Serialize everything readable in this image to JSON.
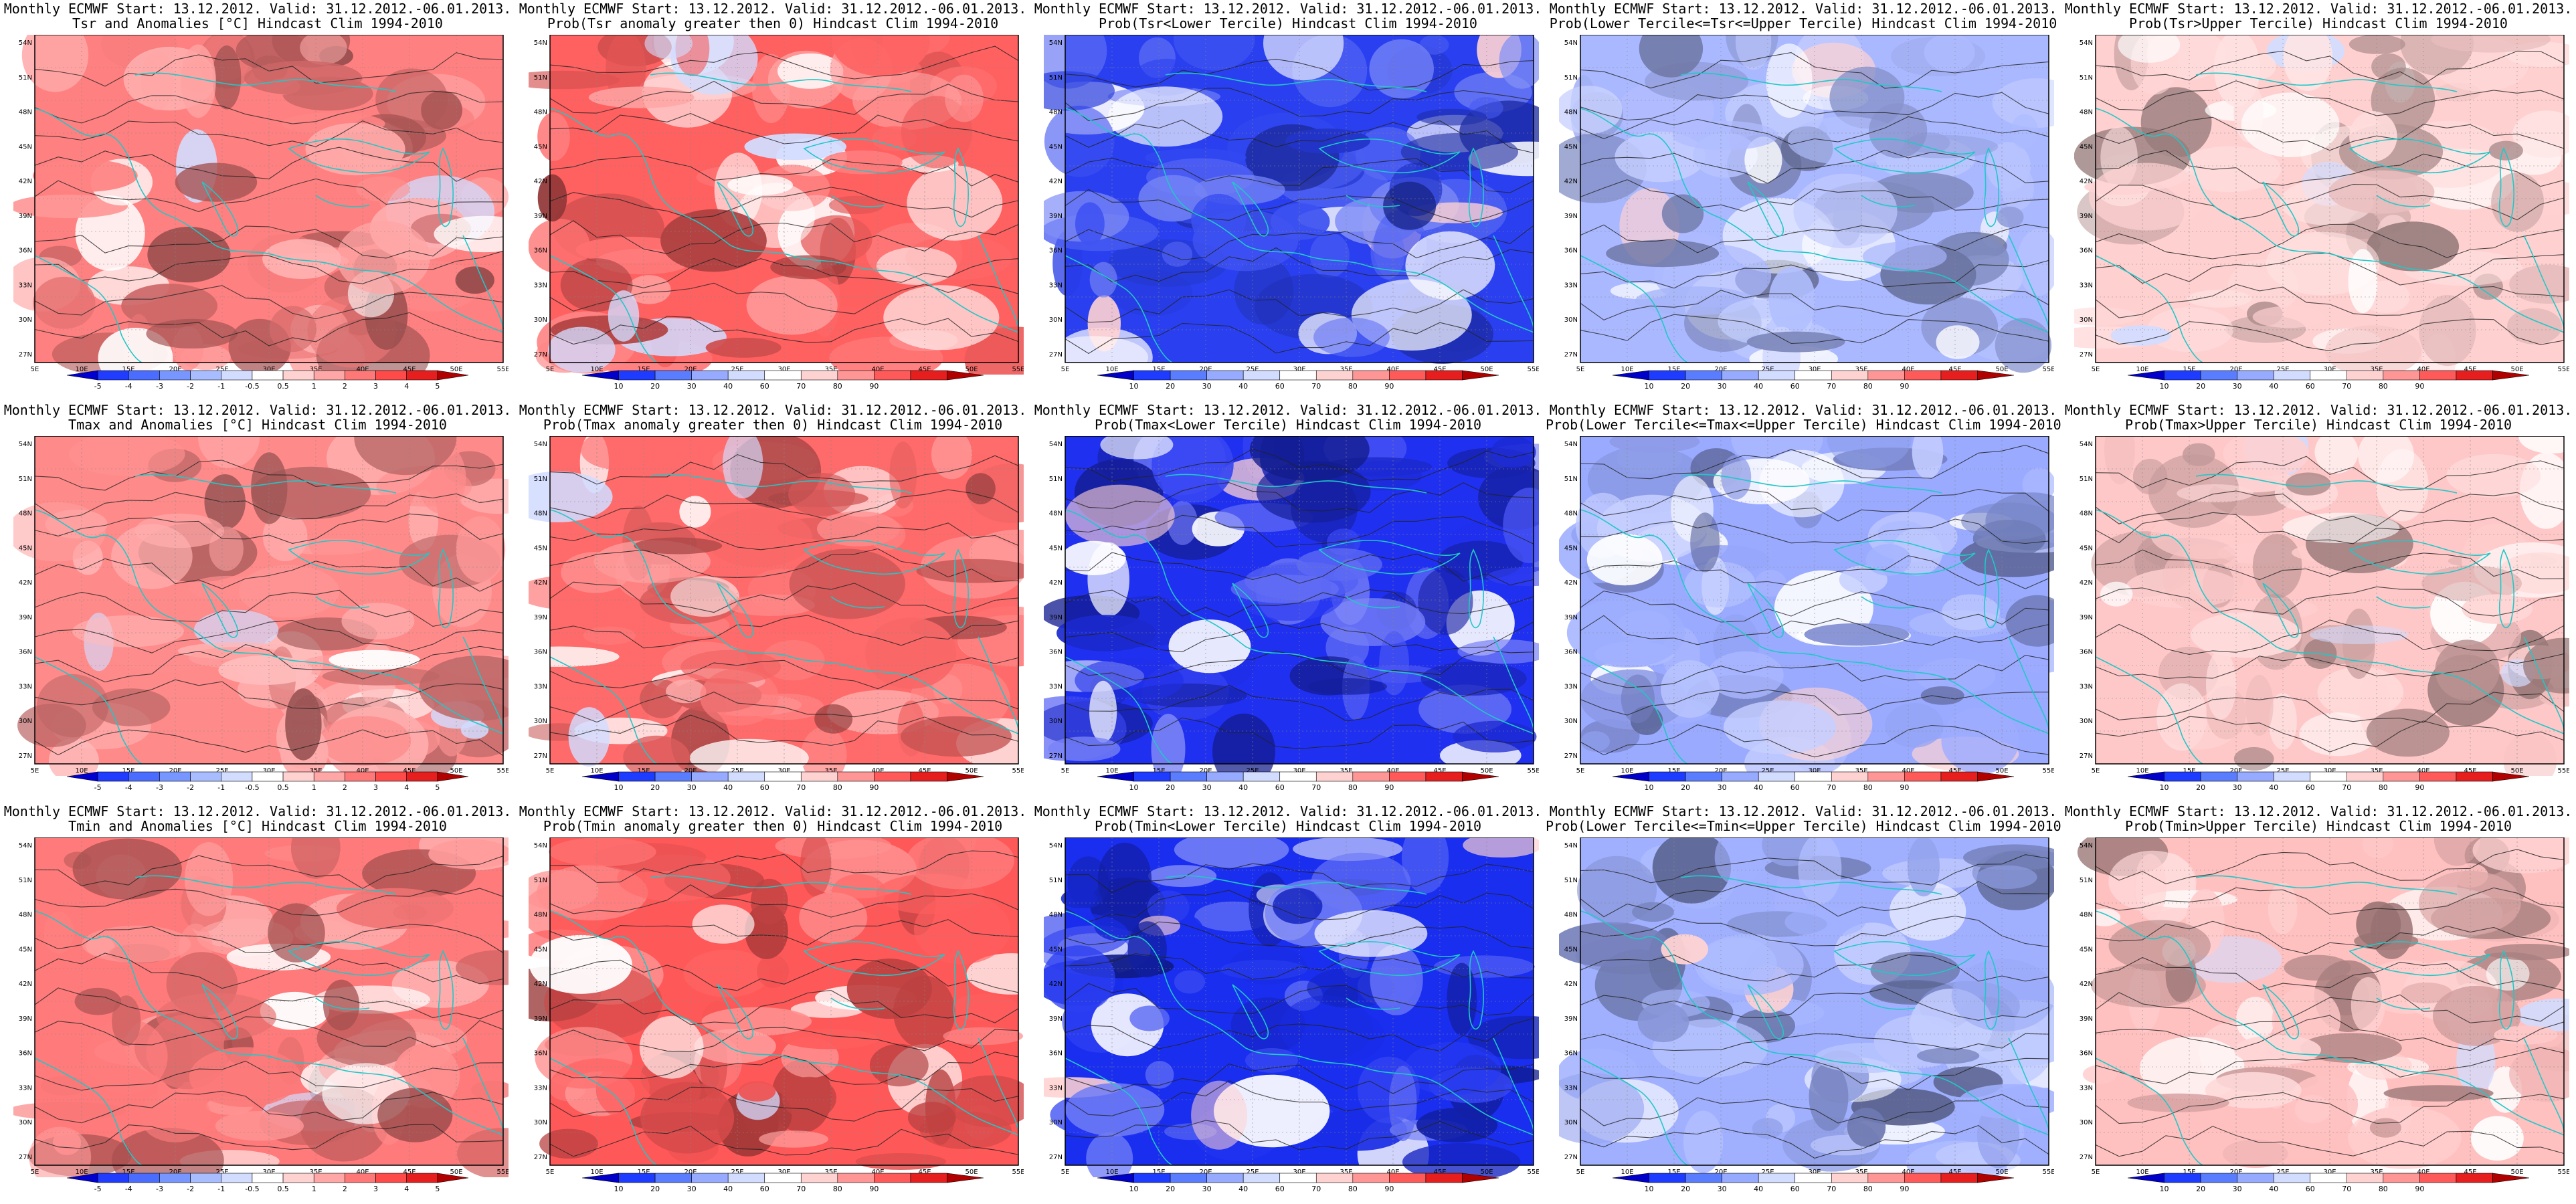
{
  "common": {
    "lat_labels": [
      "54N",
      "51N",
      "48N",
      "45N",
      "42N",
      "39N",
      "36N",
      "33N",
      "30N",
      "27N"
    ],
    "lon_labels": [
      "5E",
      "10E",
      "15E",
      "20E",
      "25E",
      "30E",
      "35E",
      "40E",
      "45E",
      "50E",
      "55E"
    ]
  },
  "colorbars": {
    "anomaly": {
      "labels": [
        "-5",
        "-4",
        "-3",
        "-2",
        "-1",
        "-0.5",
        "0.5",
        "1",
        "2",
        "3",
        "4",
        "5"
      ],
      "colors": [
        "#0000d0",
        "#1f3cff",
        "#4a6cff",
        "#7896ff",
        "#a7bdff",
        "#d2dcff",
        "#ffffff",
        "#ffd2d2",
        "#ffa7a7",
        "#ff7878",
        "#ff4a4a",
        "#e61e1e",
        "#b00000"
      ]
    },
    "prob": {
      "labels": [
        "10",
        "20",
        "30",
        "40",
        "60",
        "70",
        "80",
        "90"
      ],
      "colors": [
        "#0000c8",
        "#1e3cff",
        "#5a7dff",
        "#96aaff",
        "#d2dcff",
        "#ffffff",
        "#ffd2d2",
        "#ff9696",
        "#ff5a5a",
        "#e61e1e",
        "#b00000"
      ]
    }
  },
  "panels": [
    {
      "title1": "Monthly ECMWF Start: 13.12.2012. Valid: 31.12.2012.-06.01.2013.",
      "title2": "Tsr and Anomalies [°C] Hindcast Clim 1994-2010",
      "cbar": "anomaly",
      "base": "#ff8080"
    },
    {
      "title1": "Monthly ECMWF Start: 13.12.2012. Valid: 31.12.2012.-06.01.2013.",
      "title2": "Prob(Tsr anomaly greater then 0) Hindcast Clim 1994-2010",
      "cbar": "prob",
      "base": "#ff6060"
    },
    {
      "title1": "Monthly ECMWF Start: 13.12.2012. Valid: 31.12.2012.-06.01.2013.",
      "title2": "Prob(Tsr<Lower Tercile) Hindcast Clim 1994-2010",
      "cbar": "prob",
      "base": "#2a40f0"
    },
    {
      "title1": "Monthly ECMWF Start: 13.12.2012. Valid: 31.12.2012.-06.01.2013.",
      "title2": "Prob(Lower Tercile<=Tsr<=Upper Tercile) Hindcast Clim 1994-2010",
      "cbar": "prob",
      "base": "#aab8ff"
    },
    {
      "title1": "Monthly ECMWF Start: 13.12.2012. Valid: 31.12.2012.-06.01.2013.",
      "title2": "Prob(Tsr>Upper Tercile) Hindcast Clim 1994-2010",
      "cbar": "prob",
      "base": "#ffd0d0"
    },
    {
      "title1": "Monthly ECMWF Start: 13.12.2012. Valid: 31.12.2012.-06.01.2013.",
      "title2": "Tmax and Anomalies [°C] Hindcast Clim 1994-2010",
      "cbar": "anomaly",
      "base": "#ff8a8a"
    },
    {
      "title1": "Monthly ECMWF Start: 13.12.2012. Valid: 31.12.2012.-06.01.2013.",
      "title2": "Prob(Tmax anomaly greater then 0) Hindcast Clim 1994-2010",
      "cbar": "prob",
      "base": "#ff6a6a"
    },
    {
      "title1": "Monthly ECMWF Start: 13.12.2012. Valid: 31.12.2012.-06.01.2013.",
      "title2": "Prob(Tmax<Lower Tercile) Hindcast Clim 1994-2010",
      "cbar": "prob",
      "base": "#2030f0"
    },
    {
      "title1": "Monthly ECMWF Start: 13.12.2012. Valid: 31.12.2012.-06.01.2013.",
      "title2": "Prob(Lower Tercile<=Tmax<=Upper Tercile) Hindcast Clim 1994-2010",
      "cbar": "prob",
      "base": "#9aaaff"
    },
    {
      "title1": "Monthly ECMWF Start: 13.12.2012. Valid: 31.12.2012.-06.01.2013.",
      "title2": "Prob(Tmax>Upper Tercile) Hindcast Clim 1994-2010",
      "cbar": "prob",
      "base": "#ffc8c8"
    },
    {
      "title1": "Monthly ECMWF Start: 13.12.2012. Valid: 31.12.2012.-06.01.2013.",
      "title2": "Tmin and Anomalies [°C] Hindcast Clim 1994-2010",
      "cbar": "anomaly",
      "base": "#ff7a7a"
    },
    {
      "title1": "Monthly ECMWF Start: 13.12.2012. Valid: 31.12.2012.-06.01.2013.",
      "title2": "Prob(Tmin anomaly greater then 0) Hindcast Clim 1994-2010",
      "cbar": "prob",
      "base": "#ff5858"
    },
    {
      "title1": "Monthly ECMWF Start: 13.12.2012. Valid: 31.12.2012.-06.01.2013.",
      "title2": "Prob(Tmin<Lower Tercile) Hindcast Clim 1994-2010",
      "cbar": "prob",
      "base": "#1a2ef0"
    },
    {
      "title1": "Monthly ECMWF Start: 13.12.2012. Valid: 31.12.2012.-06.01.2013.",
      "title2": "Prob(Lower Tercile<=Tmin<=Upper Tercile) Hindcast Clim 1994-2010",
      "cbar": "prob",
      "base": "#a0b0ff"
    },
    {
      "title1": "Monthly ECMWF Start: 13.12.2012. Valid: 31.12.2012.-06.01.2013.",
      "title2": "Prob(Tmin>Upper Tercile) Hindcast Clim 1994-2010",
      "cbar": "prob",
      "base": "#ffc0c0"
    }
  ]
}
